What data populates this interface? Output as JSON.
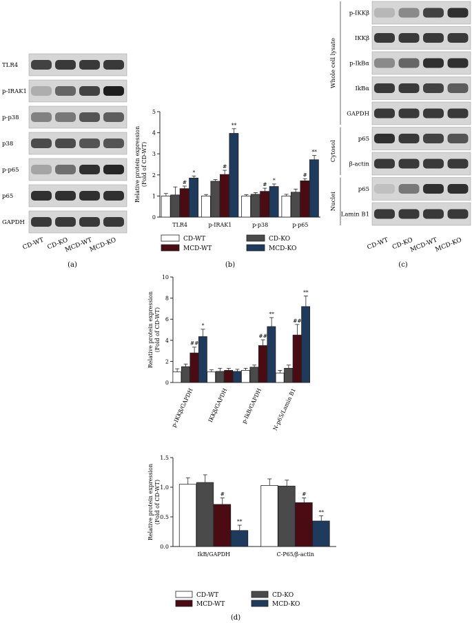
{
  "panel_labels": {
    "a": "(a)",
    "b": "(b)",
    "c": "(c)",
    "d": "(d)"
  },
  "colors": {
    "CD-WT": "#ffffff",
    "CD-KO": "#4a4a4a",
    "MCD-WT": "#4a0c12",
    "MCD-KO": "#1e3a5c"
  },
  "legend_labels": [
    "CD-WT",
    "CD-KO",
    "MCD-WT",
    "MCD-KO"
  ],
  "blot_a": {
    "rows": [
      "TLR4",
      "p-IRAK1",
      "p-p38",
      "p38",
      "p-p65",
      "p65",
      "GAPDH"
    ],
    "lanes": [
      "CD-WT",
      "CD-KO",
      "MCD-WT",
      "MCD-KO"
    ],
    "intensity": [
      [
        0.75,
        0.8,
        0.8,
        0.8
      ],
      [
        0.15,
        0.55,
        0.75,
        0.95
      ],
      [
        0.4,
        0.45,
        0.65,
        0.6
      ],
      [
        0.7,
        0.7,
        0.65,
        0.65
      ],
      [
        0.2,
        0.5,
        0.85,
        0.9
      ],
      [
        0.85,
        0.85,
        0.85,
        0.85
      ],
      [
        0.8,
        0.8,
        0.8,
        0.8
      ]
    ]
  },
  "blot_c": {
    "group_labels": [
      "Whole cell lysate",
      "Cytosol",
      "Nuclei"
    ],
    "rows": [
      "p-IKKβ",
      "IKKβ",
      "p-IkBα",
      "IkBα",
      "GAPDH",
      "p65",
      "β-actin",
      "p65",
      "Lamin B1"
    ],
    "lanes": [
      "CD-WT",
      "CD-KO",
      "MCD-WT",
      "MCD-KO"
    ],
    "intensity": [
      [
        0.1,
        0.35,
        0.75,
        0.85
      ],
      [
        0.8,
        0.8,
        0.8,
        0.8
      ],
      [
        0.35,
        0.55,
        0.85,
        0.85
      ],
      [
        0.8,
        0.8,
        0.75,
        0.6
      ],
      [
        0.8,
        0.8,
        0.8,
        0.8
      ],
      [
        0.85,
        0.8,
        0.75,
        0.65
      ],
      [
        0.8,
        0.8,
        0.8,
        0.8
      ],
      [
        0.05,
        0.45,
        0.85,
        0.85
      ],
      [
        0.8,
        0.8,
        0.8,
        0.8
      ]
    ]
  },
  "chart_data": [
    {
      "id": "b",
      "type": "bar",
      "ylabel": "Relative protein expression\n(Fold of CD-WT)",
      "ylim": [
        0,
        5
      ],
      "yticks": [
        "0",
        "1",
        "2",
        "3",
        "4",
        "5"
      ],
      "categories": [
        "TLR4",
        "p-IRAK1",
        "p-p38",
        "p-p65"
      ],
      "series": [
        {
          "name": "CD-WT",
          "values": [
            1.0,
            1.0,
            1.0,
            1.0
          ],
          "err": [
            0.12,
            0.07,
            0.06,
            0.08
          ]
        },
        {
          "name": "CD-KO",
          "values": [
            1.05,
            1.7,
            1.08,
            1.18
          ],
          "err": [
            0.38,
            0.08,
            0.08,
            0.15
          ]
        },
        {
          "name": "MCD-WT",
          "values": [
            1.35,
            2.02,
            1.22,
            1.72
          ],
          "err": [
            0.12,
            0.2,
            0.15,
            0.1
          ]
        },
        {
          "name": "MCD-KO",
          "values": [
            1.85,
            3.97,
            1.45,
            2.72
          ],
          "err": [
            0.1,
            0.22,
            0.12,
            0.2
          ]
        }
      ],
      "annotations": [
        [
          "",
          "",
          "#",
          "*"
        ],
        [
          "",
          "",
          "#",
          "**"
        ],
        [
          "",
          "",
          "#",
          "*"
        ],
        [
          "",
          "",
          "#",
          "**"
        ]
      ]
    },
    {
      "id": "d1",
      "type": "bar",
      "ylabel": "Relative protein expression\n(Fold of CD-WT)",
      "ylim": [
        0,
        10
      ],
      "yticks": [
        "0",
        "2",
        "4",
        "6",
        "8",
        "10"
      ],
      "categories": [
        "p-IKKβ/GAPDH",
        "IKKβ/GAPDH",
        "p-IkB/GAPDH",
        "N-p65/Lamin B1"
      ],
      "series": [
        {
          "name": "CD-WT",
          "values": [
            1.0,
            1.0,
            1.15,
            0.9
          ],
          "err": [
            0.3,
            0.2,
            0.2,
            0.25
          ]
        },
        {
          "name": "CD-KO",
          "values": [
            1.5,
            1.05,
            1.45,
            1.35
          ],
          "err": [
            0.25,
            0.3,
            0.2,
            0.3
          ]
        },
        {
          "name": "MCD-WT",
          "values": [
            2.8,
            1.15,
            3.5,
            4.5
          ],
          "err": [
            0.55,
            0.2,
            0.55,
            1.0
          ]
        },
        {
          "name": "MCD-KO",
          "values": [
            4.35,
            1.05,
            5.3,
            7.2
          ],
          "err": [
            0.7,
            0.2,
            0.85,
            1.0
          ]
        }
      ],
      "annotations": [
        [
          "",
          "",
          "##",
          "*"
        ],
        [
          "",
          "",
          "",
          ""
        ],
        [
          "",
          "",
          "##",
          "**"
        ],
        [
          "",
          "",
          "##",
          "**"
        ]
      ]
    },
    {
      "id": "d2",
      "type": "bar",
      "ylabel": "Relative protein expression\n(Fold of CD-WT)",
      "ylim": [
        0,
        1.5
      ],
      "yticks": [
        "0.0",
        "0.5",
        "1.0",
        "1.5"
      ],
      "categories": [
        "IkB/GAPDH",
        "C-P65/β-actin"
      ],
      "series": [
        {
          "name": "CD-WT",
          "values": [
            1.05,
            1.03
          ],
          "err": [
            0.11,
            0.11
          ]
        },
        {
          "name": "CD-KO",
          "values": [
            1.08,
            1.02
          ],
          "err": [
            0.13,
            0.1
          ]
        },
        {
          "name": "MCD-WT",
          "values": [
            0.71,
            0.74
          ],
          "err": [
            0.11,
            0.08
          ]
        },
        {
          "name": "MCD-KO",
          "values": [
            0.27,
            0.43
          ],
          "err": [
            0.09,
            0.09
          ]
        }
      ],
      "annotations": [
        [
          "",
          "",
          "#",
          "**"
        ],
        [
          "",
          "",
          "#",
          "**"
        ]
      ]
    }
  ]
}
